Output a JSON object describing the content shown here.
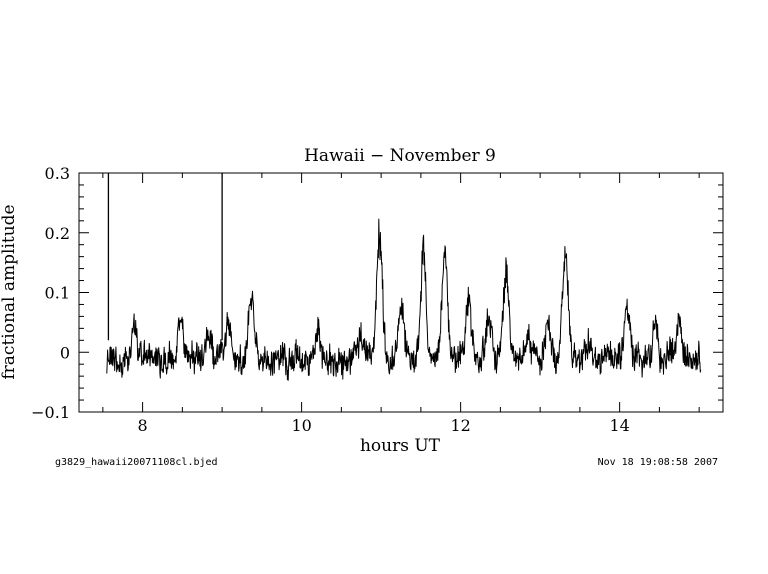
{
  "chart_data": {
    "type": "line",
    "title": "Hawaii − November 9",
    "xlabel": "hours UT",
    "ylabel": "fractional amplitude",
    "xlim": [
      7.2,
      15.3
    ],
    "ylim": [
      -0.1,
      0.3
    ],
    "x_ticks": [
      8,
      10,
      12,
      14
    ],
    "x_tick_labels": [
      "8",
      "10",
      "12",
      "14"
    ],
    "y_ticks": [
      -0.1,
      0,
      0.1,
      0.2,
      0.3
    ],
    "y_tick_labels": [
      "−0.1",
      "0",
      "0.1",
      "0.2",
      "0.3"
    ],
    "grid": false,
    "series": [
      {
        "color": "#000000",
        "x_start": 7.55,
        "x_end": 15.02,
        "noise_amplitude": 0.045,
        "spikes": [
          {
            "x": 7.57,
            "y": 0.3
          },
          {
            "x": 9.0,
            "y": 0.3
          }
        ],
        "peaks": [
          {
            "x": 7.9,
            "y": 0.07
          },
          {
            "x": 8.48,
            "y": 0.08
          },
          {
            "x": 8.83,
            "y": 0.05
          },
          {
            "x": 9.08,
            "y": 0.07
          },
          {
            "x": 9.37,
            "y": 0.12
          },
          {
            "x": 10.2,
            "y": 0.06
          },
          {
            "x": 10.75,
            "y": 0.05
          },
          {
            "x": 10.98,
            "y": 0.23
          },
          {
            "x": 11.25,
            "y": 0.1
          },
          {
            "x": 11.53,
            "y": 0.2
          },
          {
            "x": 11.8,
            "y": 0.19
          },
          {
            "x": 12.1,
            "y": 0.11
          },
          {
            "x": 12.35,
            "y": 0.09
          },
          {
            "x": 12.57,
            "y": 0.16
          },
          {
            "x": 12.85,
            "y": 0.05
          },
          {
            "x": 13.1,
            "y": 0.07
          },
          {
            "x": 13.32,
            "y": 0.2
          },
          {
            "x": 13.6,
            "y": 0.05
          },
          {
            "x": 14.1,
            "y": 0.09
          },
          {
            "x": 14.45,
            "y": 0.07
          },
          {
            "x": 14.75,
            "y": 0.08
          }
        ]
      }
    ]
  },
  "footer": {
    "left": "g3829_hawaii20071108cl.bjed",
    "right": "Nov 18 19:08:58 2007"
  }
}
